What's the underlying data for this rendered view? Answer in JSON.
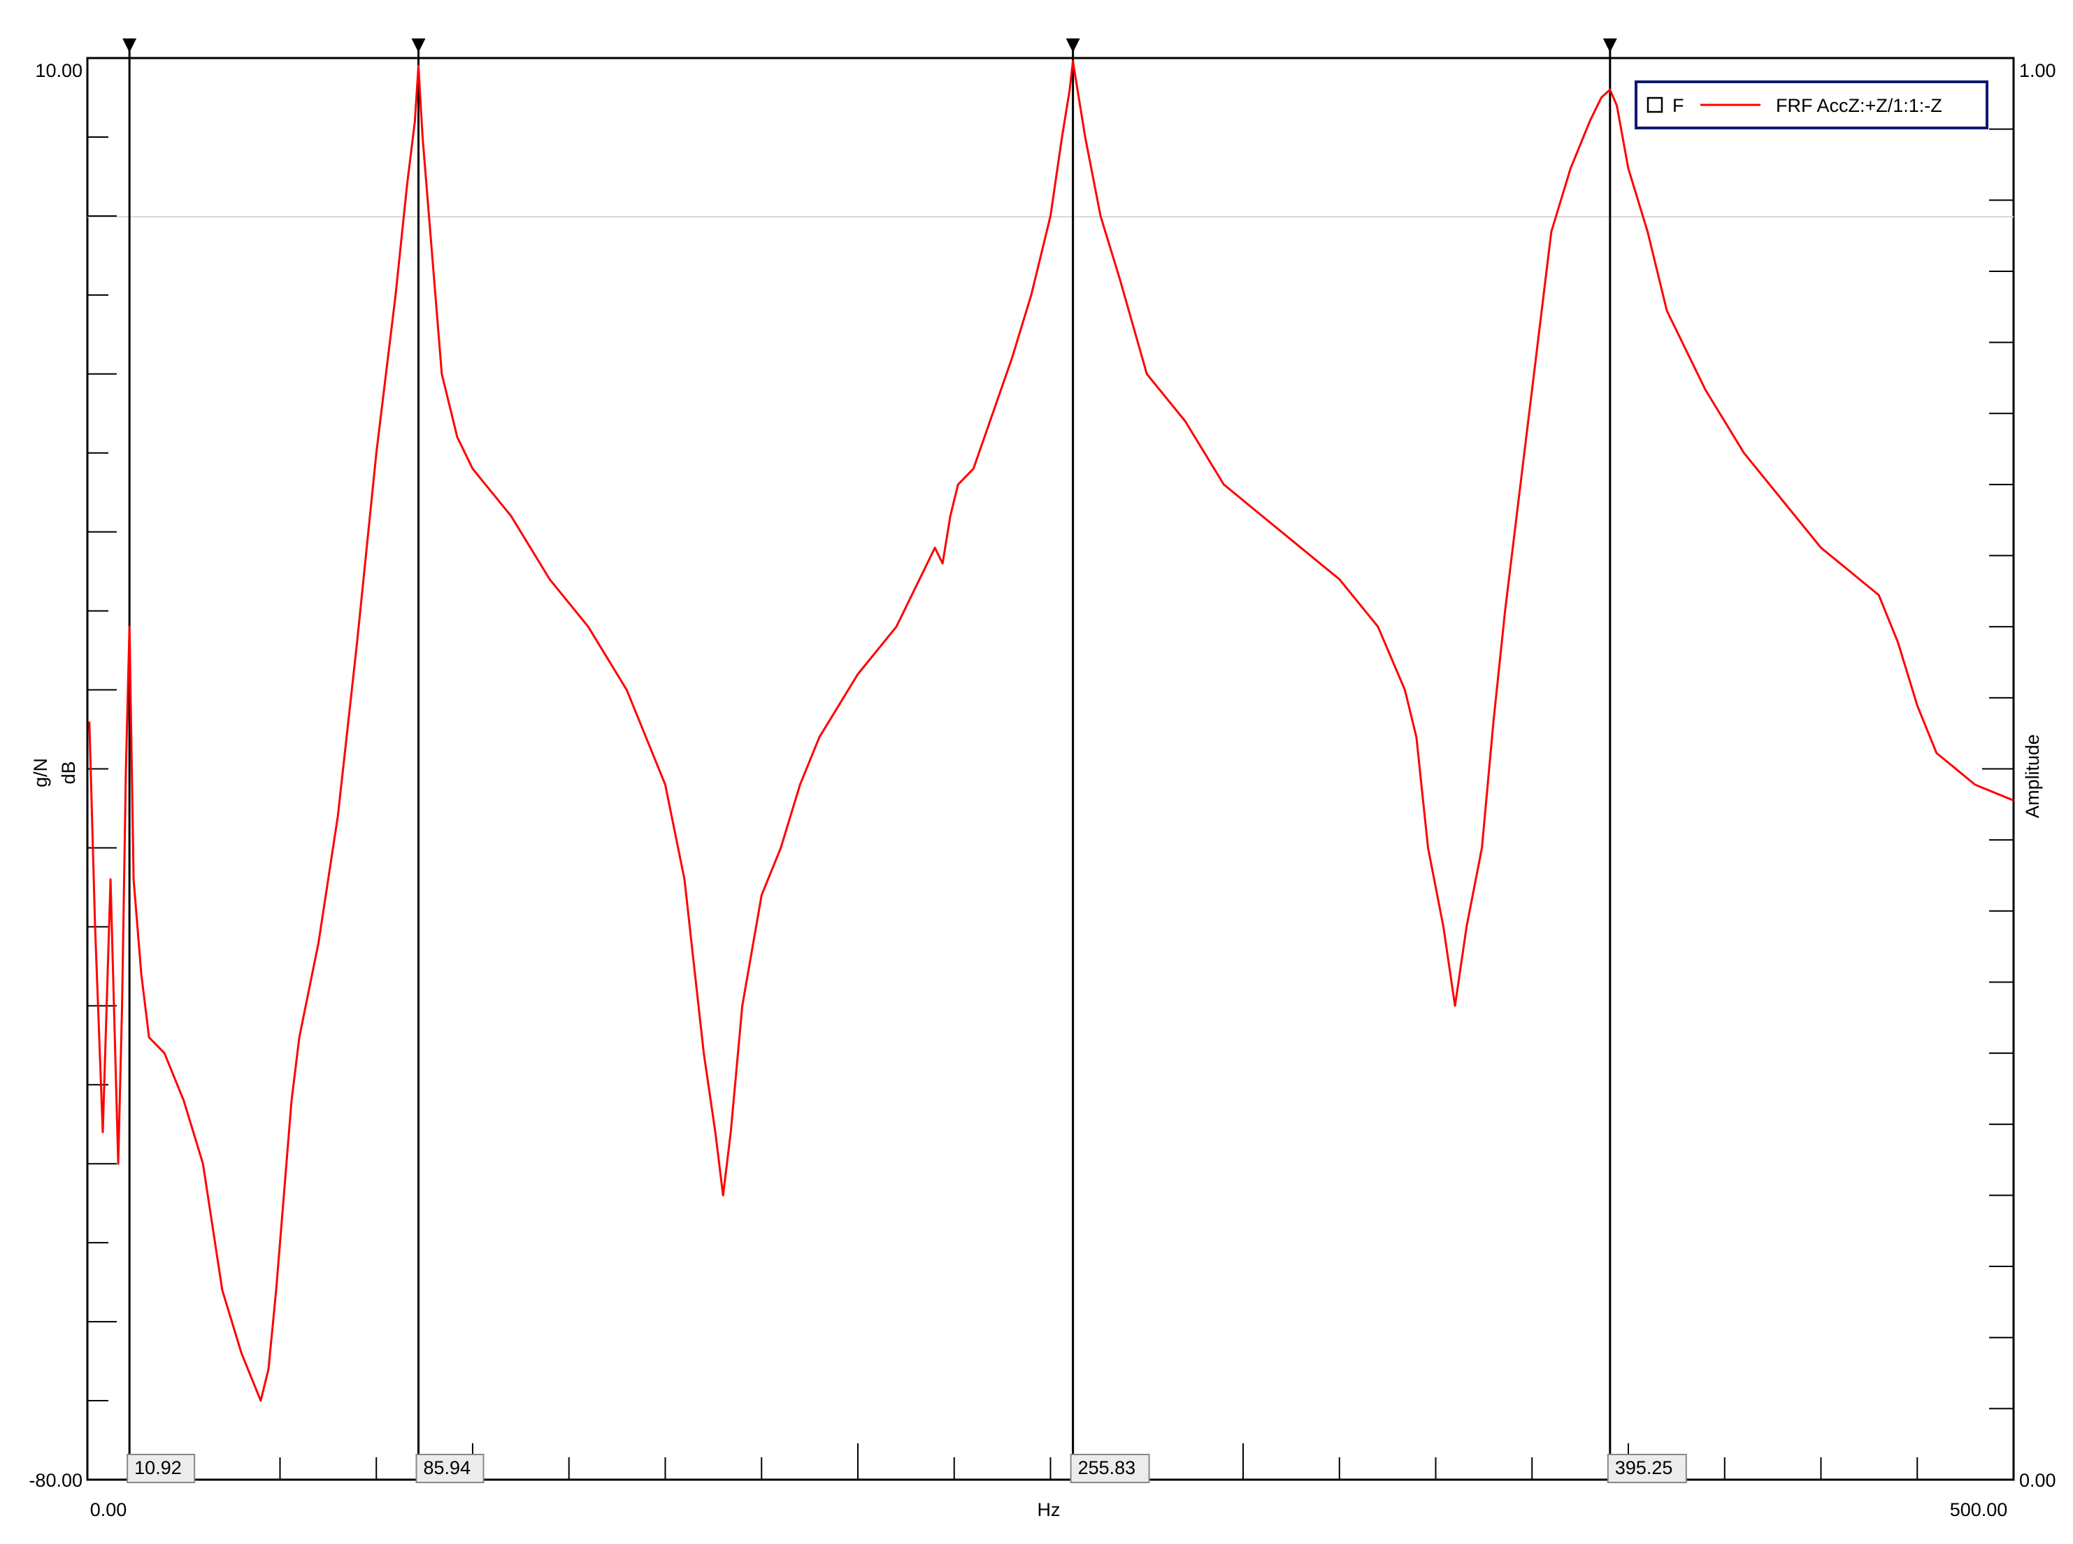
{
  "chart_data": {
    "type": "line",
    "xlabel": "Hz",
    "ylabel_left": [
      "g/N",
      "dB"
    ],
    "ylabel_right": "Amplitude",
    "xlim": [
      0,
      500
    ],
    "ylim_left": [
      -80,
      10
    ],
    "ylim_right": [
      0,
      1
    ],
    "tick_labels": {
      "y_left_top": "10.00",
      "y_left_bottom": "-80.00",
      "y_right_top": "1.00",
      "y_right_bottom": "0.00",
      "x_left": "0.00",
      "x_right": "500.00"
    },
    "legend": {
      "position": "top-right",
      "marker_label": "F",
      "series_label": "FRF AccZ:+Z/1:1:-Z"
    },
    "cursors": [
      {
        "x": 10.92,
        "label": "10.92"
      },
      {
        "x": 85.94,
        "label": "85.94"
      },
      {
        "x": 255.83,
        "label": "255.83"
      },
      {
        "x": 395.25,
        "label": "395.25"
      }
    ],
    "series": [
      {
        "name": "FRF AccZ:+Z/1:1:-Z",
        "color": "#ff0000",
        "x": [
          0.5,
          2,
          4,
          6,
          8,
          9,
          10,
          10.92,
          12,
          14,
          16,
          20,
          25,
          30,
          35,
          40,
          45,
          47,
          49,
          51,
          53,
          55,
          60,
          65,
          70,
          75,
          80,
          83,
          85,
          85.94,
          87,
          89,
          92,
          96,
          100,
          110,
          120,
          130,
          140,
          150,
          155,
          160,
          163,
          165,
          167,
          170,
          175,
          180,
          185,
          190,
          200,
          210,
          220,
          222,
          224,
          226,
          230,
          240,
          245,
          250,
          253,
          255,
          255.83,
          257,
          259,
          263,
          268,
          275,
          285,
          295,
          305,
          315,
          325,
          335,
          342,
          345,
          348,
          352,
          355,
          358,
          362,
          365,
          368,
          372,
          376,
          380,
          385,
          390,
          393,
          395.25,
          397,
          400,
          405,
          410,
          420,
          430,
          440,
          450,
          455,
          460,
          465,
          470,
          475,
          480,
          490,
          500
        ],
        "y": [
          -32,
          -45,
          -58,
          -42,
          -60,
          -50,
          -35,
          -26,
          -42,
          -48,
          -52,
          -53,
          -56,
          -60,
          -68,
          -72,
          -75,
          -73,
          -68,
          -62,
          -56,
          -52,
          -46,
          -38,
          -27,
          -15,
          -5,
          2,
          6,
          9.5,
          5,
          -1,
          -10,
          -14,
          -16,
          -19,
          -23,
          -26,
          -30,
          -36,
          -42,
          -53,
          -58,
          -62,
          -58,
          -50,
          -43,
          -40,
          -36,
          -33,
          -29,
          -26,
          -21,
          -22,
          -19,
          -17,
          -16,
          -9,
          -5,
          0,
          5,
          8,
          9.8,
          8,
          5,
          0,
          -4,
          -10,
          -13,
          -17,
          -19,
          -21,
          -23,
          -26,
          -30,
          -33,
          -40,
          -45,
          -50,
          -45,
          -40,
          -32,
          -25,
          -17,
          -9,
          -1,
          3,
          6,
          7.5,
          8,
          7,
          3,
          -1,
          -6,
          -11,
          -15,
          -18,
          -21,
          -22,
          -23,
          -24,
          -27,
          -31,
          -34,
          -36,
          -37
        ]
      }
    ]
  }
}
